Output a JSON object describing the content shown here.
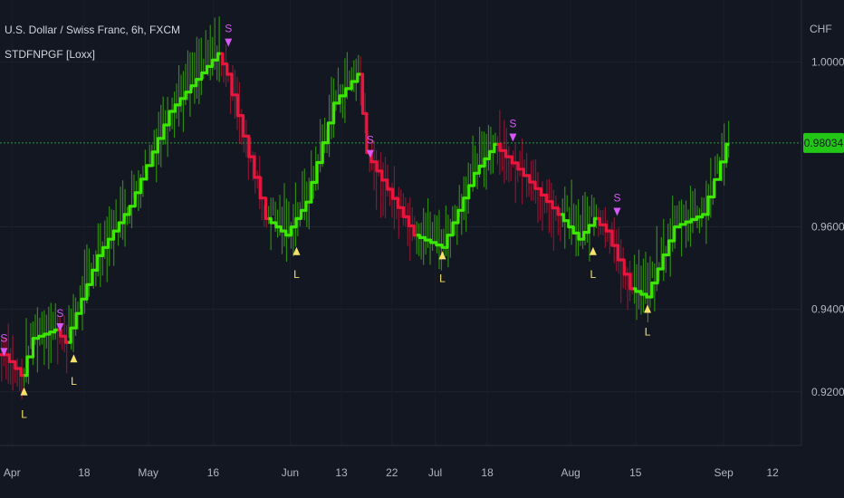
{
  "chart_data": {
    "type": "line",
    "title": "U.S. Dollar / Swiss Franc, 6h, FXCM",
    "indicator": "STDFNPGF [Loxx]",
    "currency": "CHF",
    "ylim": [
      0.907,
      1.015
    ],
    "y_ticks": [
      {
        "value": 0.92,
        "label": "0.92000"
      },
      {
        "value": 0.94,
        "label": "0.94000"
      },
      {
        "value": 0.96,
        "label": "0.96000"
      },
      {
        "value": 1.0,
        "label": "1.00000"
      }
    ],
    "x_range": [
      0,
      100
    ],
    "x_ticks": [
      {
        "x": 1.5,
        "label": "Apr"
      },
      {
        "x": 10.5,
        "label": "18"
      },
      {
        "x": 18.5,
        "label": "May"
      },
      {
        "x": 26.6,
        "label": "16"
      },
      {
        "x": 36.2,
        "label": "Jun"
      },
      {
        "x": 42.6,
        "label": "13"
      },
      {
        "x": 48.9,
        "label": "22"
      },
      {
        "x": 54.3,
        "label": "Jul"
      },
      {
        "x": 60.8,
        "label": "18"
      },
      {
        "x": 71.2,
        "label": "Aug"
      },
      {
        "x": 79.3,
        "label": "15"
      },
      {
        "x": 90.3,
        "label": "Sep"
      },
      {
        "x": 96.4,
        "label": "12"
      }
    ],
    "last_price": {
      "value": 0.98034,
      "label": "0.98034"
    },
    "colors": {
      "bull": "#3ce800",
      "bear": "#e8163c",
      "candle_bull": "#2f8a10",
      "candle_bear": "#8a1530",
      "long_signal": "#f6e26b",
      "short_signal": "#d659f5",
      "price_line": "#2a9b3a",
      "last_price_bg": "#22c716"
    },
    "indicator_path": [
      {
        "x": 0,
        "y": 0.929,
        "trend": "bull"
      },
      {
        "x": 0.8,
        "y": 0.929,
        "trend": "bear"
      },
      {
        "x": 3.0,
        "y": 0.924,
        "trend": "bear"
      },
      {
        "x": 4.5,
        "y": 0.933,
        "trend": "bull"
      },
      {
        "x": 7.2,
        "y": 0.935,
        "trend": "bull"
      },
      {
        "x": 8.5,
        "y": 0.932,
        "trend": "bear"
      },
      {
        "x": 12.5,
        "y": 0.953,
        "trend": "bull"
      },
      {
        "x": 16.5,
        "y": 0.965,
        "trend": "bull"
      },
      {
        "x": 21.5,
        "y": 0.988,
        "trend": "bull"
      },
      {
        "x": 27.5,
        "y": 1.002,
        "trend": "bull"
      },
      {
        "x": 28.6,
        "y": 0.997,
        "trend": "bear"
      },
      {
        "x": 33.5,
        "y": 0.962,
        "trend": "bear"
      },
      {
        "x": 36.0,
        "y": 0.958,
        "trend": "bull"
      },
      {
        "x": 38.5,
        "y": 0.966,
        "trend": "bull"
      },
      {
        "x": 42.0,
        "y": 0.99,
        "trend": "bull"
      },
      {
        "x": 45.0,
        "y": 0.997,
        "trend": "bull"
      },
      {
        "x": 46.0,
        "y": 0.978,
        "trend": "bear"
      },
      {
        "x": 52.0,
        "y": 0.958,
        "trend": "bear"
      },
      {
        "x": 55.5,
        "y": 0.955,
        "trend": "bull"
      },
      {
        "x": 59.5,
        "y": 0.973,
        "trend": "bull"
      },
      {
        "x": 62.0,
        "y": 0.98,
        "trend": "bull"
      },
      {
        "x": 65.0,
        "y": 0.974,
        "trend": "bear"
      },
      {
        "x": 70.0,
        "y": 0.963,
        "trend": "bear"
      },
      {
        "x": 72.5,
        "y": 0.957,
        "trend": "bull"
      },
      {
        "x": 74.5,
        "y": 0.962,
        "trend": "bull"
      },
      {
        "x": 76.0,
        "y": 0.959,
        "trend": "bear"
      },
      {
        "x": 79.0,
        "y": 0.945,
        "trend": "bear"
      },
      {
        "x": 81.0,
        "y": 0.943,
        "trend": "bull"
      },
      {
        "x": 84.5,
        "y": 0.96,
        "trend": "bull"
      },
      {
        "x": 88.0,
        "y": 0.963,
        "trend": "bull"
      },
      {
        "x": 91.0,
        "y": 0.98,
        "trend": "bull"
      }
    ],
    "signals": [
      {
        "x": 0.5,
        "y": 0.928,
        "type": "short",
        "label": "S"
      },
      {
        "x": 3.0,
        "y": 0.922,
        "type": "long",
        "label": "L"
      },
      {
        "x": 7.5,
        "y": 0.934,
        "type": "short",
        "label": "S"
      },
      {
        "x": 9.2,
        "y": 0.93,
        "type": "long",
        "label": "L"
      },
      {
        "x": 28.5,
        "y": 1.003,
        "type": "short",
        "label": "S"
      },
      {
        "x": 37.0,
        "y": 0.956,
        "type": "long",
        "label": "L"
      },
      {
        "x": 46.2,
        "y": 0.976,
        "type": "short",
        "label": "S"
      },
      {
        "x": 55.2,
        "y": 0.955,
        "type": "long",
        "label": "L"
      },
      {
        "x": 64.0,
        "y": 0.98,
        "type": "short",
        "label": "S"
      },
      {
        "x": 74.0,
        "y": 0.956,
        "type": "long",
        "label": "L"
      },
      {
        "x": 77.0,
        "y": 0.962,
        "type": "short",
        "label": "S"
      },
      {
        "x": 80.8,
        "y": 0.942,
        "type": "long",
        "label": "L"
      }
    ]
  }
}
